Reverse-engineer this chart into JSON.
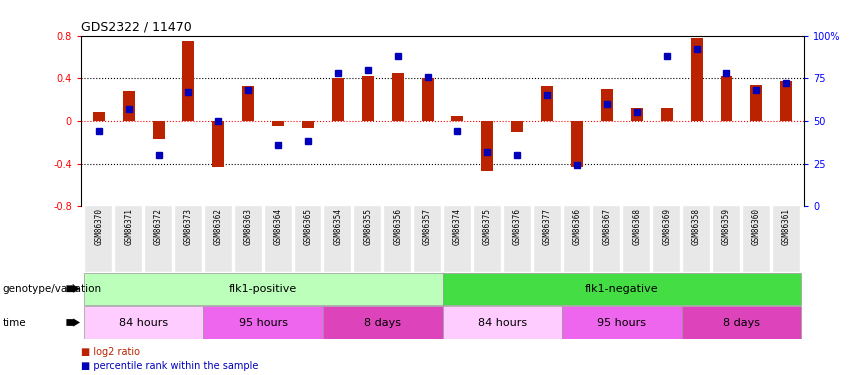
{
  "title": "GDS2322 / 11470",
  "sample_labels": [
    "GSM86370",
    "GSM86371",
    "GSM86372",
    "GSM86373",
    "GSM86362",
    "GSM86363",
    "GSM86364",
    "GSM86365",
    "GSM86354",
    "GSM86355",
    "GSM86356",
    "GSM86357",
    "GSM86374",
    "GSM86375",
    "GSM86376",
    "GSM86377",
    "GSM86366",
    "GSM86367",
    "GSM86368",
    "GSM86369",
    "GSM86358",
    "GSM86359",
    "GSM86360",
    "GSM86361"
  ],
  "log2_ratio": [
    0.08,
    0.28,
    -0.17,
    0.75,
    -0.43,
    0.33,
    -0.05,
    -0.07,
    0.4,
    0.42,
    0.45,
    0.4,
    0.05,
    -0.47,
    -0.1,
    0.33,
    -0.43,
    0.3,
    0.12,
    0.12,
    0.78,
    0.42,
    0.34,
    0.37
  ],
  "percentile": [
    44,
    57,
    30,
    67,
    50,
    68,
    36,
    38,
    78,
    80,
    88,
    76,
    44,
    32,
    30,
    65,
    24,
    60,
    55,
    88,
    92,
    78,
    68,
    72
  ],
  "genotype_groups": [
    {
      "label": "flk1-positive",
      "start": 0,
      "end": 11,
      "color": "#bbffbb"
    },
    {
      "label": "flk1-negative",
      "start": 12,
      "end": 23,
      "color": "#44dd44"
    }
  ],
  "time_groups": [
    {
      "label": "84 hours",
      "start": 0,
      "end": 3,
      "color": "#ffccff"
    },
    {
      "label": "95 hours",
      "start": 4,
      "end": 7,
      "color": "#ee66ee"
    },
    {
      "label": "8 days",
      "start": 8,
      "end": 11,
      "color": "#dd44bb"
    },
    {
      "label": "84 hours",
      "start": 12,
      "end": 15,
      "color": "#ffccff"
    },
    {
      "label": "95 hours",
      "start": 16,
      "end": 19,
      "color": "#ee66ee"
    },
    {
      "label": "8 days",
      "start": 20,
      "end": 23,
      "color": "#dd44bb"
    }
  ],
  "bar_color": "#bb2200",
  "dot_color": "#0000bb",
  "ylim_left": [
    -0.8,
    0.8
  ],
  "ylim_right": [
    0,
    100
  ],
  "yticks_left": [
    -0.8,
    -0.4,
    0.0,
    0.4,
    0.8
  ],
  "yticks_right": [
    0,
    25,
    50,
    75,
    100
  ],
  "ytick_labels_right": [
    "0",
    "25",
    "50",
    "75",
    "100%"
  ],
  "hlines_dotted": [
    0.4,
    -0.4
  ],
  "hline_red": 0.0,
  "bar_width": 0.4,
  "dot_size": 4,
  "label_fontsize": 7,
  "geno_label": "genotype/variation",
  "time_label": "time",
  "legend1_label": "log2 ratio",
  "legend2_label": "percentile rank within the sample"
}
